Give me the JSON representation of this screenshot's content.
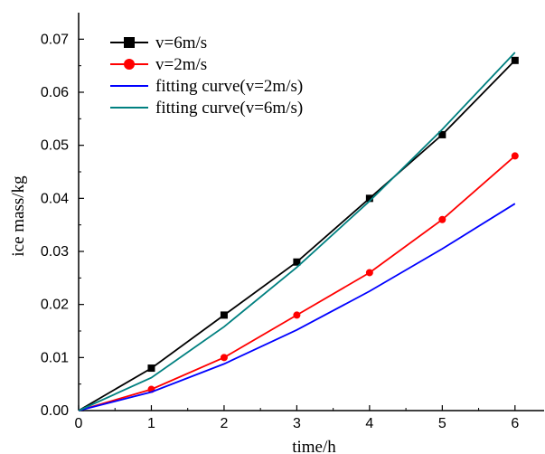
{
  "chart_data": {
    "type": "line",
    "xlabel": "time/h",
    "ylabel": "ice mass/kg",
    "xlim": [
      0,
      6.4
    ],
    "ylim": [
      0,
      0.075
    ],
    "xticks": [
      "0",
      "1",
      "2",
      "3",
      "4",
      "5",
      "6"
    ],
    "yticks": [
      "0.00",
      "0.01",
      "0.02",
      "0.03",
      "0.04",
      "0.05",
      "0.06",
      "0.07"
    ],
    "legend_position": "top-left",
    "grid": false,
    "series": [
      {
        "name": "v=6m/s",
        "color": "#000000",
        "marker": "square",
        "x": [
          0,
          1,
          2,
          3,
          4,
          5,
          6
        ],
        "y": [
          0,
          0.008,
          0.018,
          0.028,
          0.04,
          0.052,
          0.066
        ]
      },
      {
        "name": "v=2m/s",
        "color": "#ff0000",
        "marker": "circle",
        "x": [
          0,
          1,
          2,
          3,
          4,
          5,
          6
        ],
        "y": [
          0,
          0.004,
          0.01,
          0.018,
          0.026,
          0.036,
          0.048
        ]
      },
      {
        "name": "fitting curve(v=2m/s)",
        "color": "#0000ff",
        "marker": "none",
        "x": [
          0,
          1,
          2,
          3,
          4,
          5,
          6
        ],
        "y": [
          0,
          0.0035,
          0.0088,
          0.0152,
          0.0225,
          0.0305,
          0.039
        ]
      },
      {
        "name": "fitting curve(v=6m/s)",
        "color": "#008080",
        "marker": "none",
        "x": [
          0,
          1,
          2,
          3,
          4,
          5,
          6
        ],
        "y": [
          0,
          0.0062,
          0.0158,
          0.027,
          0.0395,
          0.053,
          0.0675
        ]
      }
    ]
  }
}
